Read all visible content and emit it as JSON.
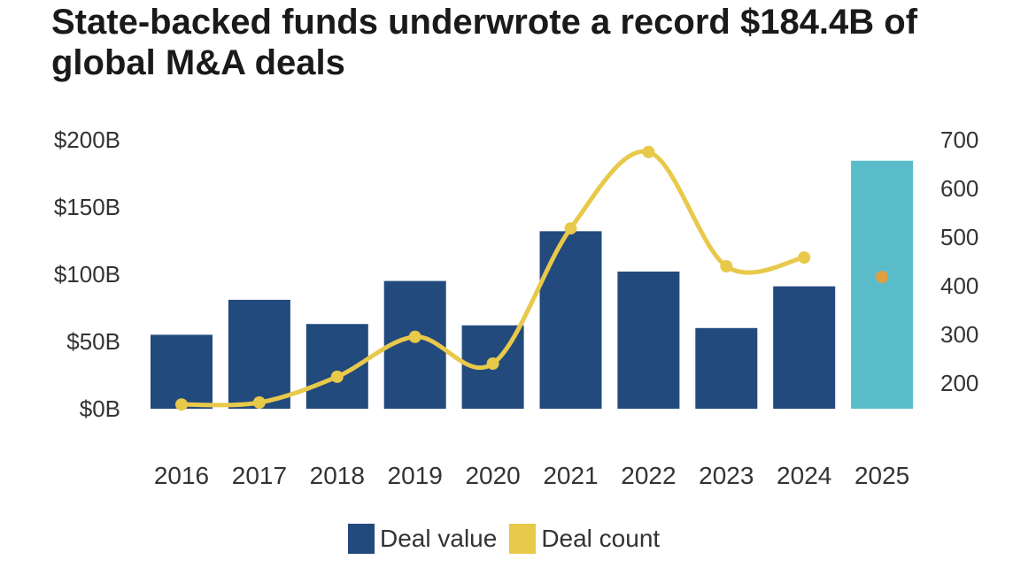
{
  "chart_data": {
    "type": "bar+line",
    "title": "State-backed funds underwrote a record $184.4B of global M&A deals",
    "categories": [
      "2016",
      "2017",
      "2018",
      "2019",
      "2020",
      "2021",
      "2022",
      "2023",
      "2024",
      "2025"
    ],
    "series": [
      {
        "name": "Deal value",
        "type": "bar",
        "axis": "left",
        "values": [
          55,
          81,
          63,
          95,
          62,
          132,
          102,
          60,
          91,
          184.4
        ],
        "color": "#234a7d",
        "highlight_color": "#5bbcc9"
      },
      {
        "name": "Deal count",
        "type": "line",
        "axis": "right",
        "values": [
          156,
          160,
          213,
          295,
          240,
          518,
          675,
          440,
          458,
          418
        ],
        "color": "#e8c94a",
        "highlight_color": "#e0a040"
      }
    ],
    "left_axis": {
      "ylim": [
        0,
        200
      ],
      "ticks": [
        0,
        50,
        100,
        150,
        200
      ],
      "tick_labels": [
        "$0B",
        "$50B",
        "$100B",
        "$150B",
        "$200B"
      ]
    },
    "right_axis": {
      "ylim": [
        200,
        700
      ],
      "ticks": [
        200,
        300,
        400,
        500,
        600,
        700
      ],
      "tick_labels": [
        "200",
        "300",
        "400",
        "500",
        "600",
        "700"
      ]
    },
    "grid": false,
    "legend": "bottom"
  }
}
